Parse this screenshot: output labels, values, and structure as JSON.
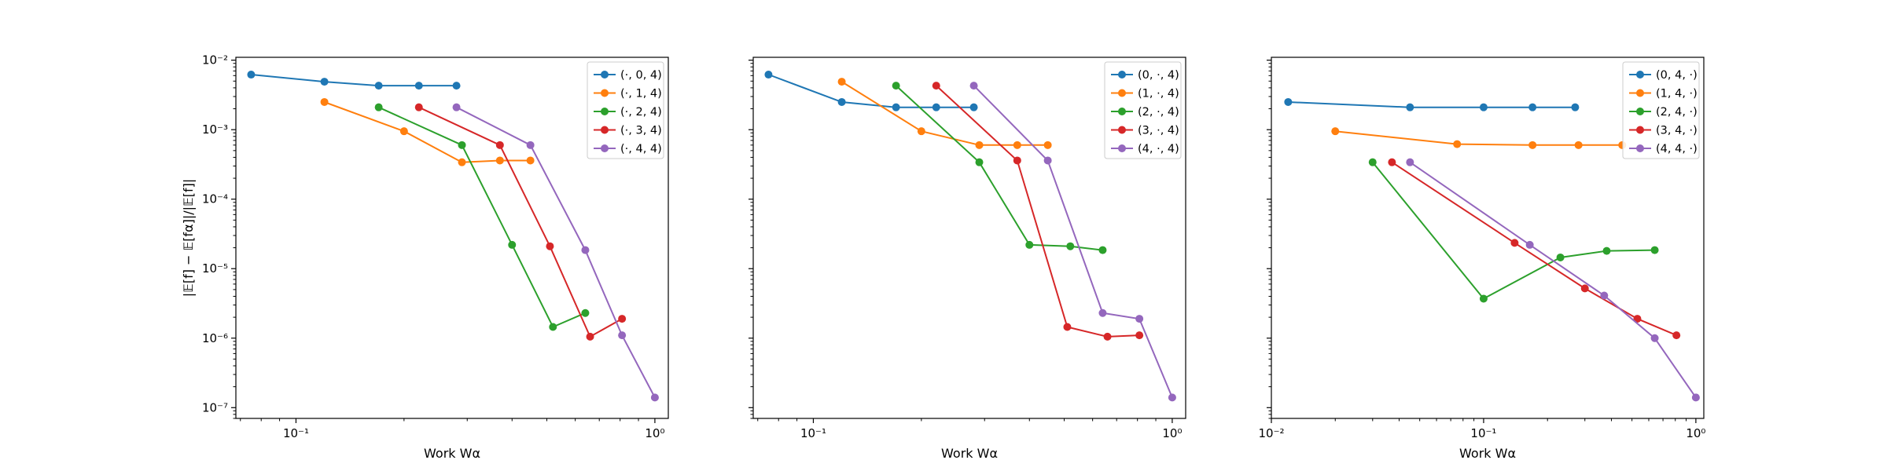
{
  "chart_data": [
    {
      "type": "line",
      "xscale": "log",
      "yscale": "log",
      "xlim": [
        0.068,
        1.09
      ],
      "ylim": [
        7e-08,
        0.011
      ],
      "xlabel": "Work Wα",
      "ylabel": "|𝔼[f] − 𝔼[fα]|/|𝔼[f]|",
      "x_ticks": [
        {
          "value": 0.1,
          "label": "10⁻¹"
        },
        {
          "value": 1,
          "label": "10⁰"
        }
      ],
      "y_ticks": [
        {
          "value": 1e-07,
          "label": "10⁻⁷"
        },
        {
          "value": 1e-06,
          "label": "10⁻⁶"
        },
        {
          "value": 1e-05,
          "label": "10⁻⁵"
        },
        {
          "value": 0.0001,
          "label": "10⁻⁴"
        },
        {
          "value": 0.001,
          "label": "10⁻³"
        },
        {
          "value": 0.01,
          "label": "10⁻²"
        }
      ],
      "legend_position": "upper right",
      "series": [
        {
          "name": "(·, 0, 4)",
          "color": "#1f77b4",
          "x": [
            0.075,
            0.12,
            0.17,
            0.22,
            0.28
          ],
          "y": [
            0.0062,
            0.0049,
            0.0043,
            0.0043,
            0.0043
          ]
        },
        {
          "name": "(·, 1, 4)",
          "color": "#ff7f0e",
          "x": [
            0.12,
            0.2,
            0.29,
            0.37,
            0.45
          ],
          "y": [
            0.0025,
            0.00095,
            0.00034,
            0.00036,
            0.00036
          ]
        },
        {
          "name": "(·, 2, 4)",
          "color": "#2ca02c",
          "x": [
            0.17,
            0.29,
            0.4,
            0.52,
            0.64
          ],
          "y": [
            0.0021,
            0.0006,
            2.2e-05,
            1.45e-06,
            2.3e-06
          ]
        },
        {
          "name": "(·, 3, 4)",
          "color": "#d62728",
          "x": [
            0.22,
            0.37,
            0.51,
            0.66,
            0.81
          ],
          "y": [
            0.0021,
            0.0006,
            2.1e-05,
            1.05e-06,
            1.9e-06
          ]
        },
        {
          "name": "(·, 4, 4)",
          "color": "#9467bd",
          "x": [
            0.28,
            0.45,
            0.64,
            0.81,
            1.0
          ],
          "y": [
            0.0021,
            0.0006,
            1.85e-05,
            1.1e-06,
            1.4e-07
          ]
        }
      ]
    },
    {
      "type": "line",
      "xscale": "log",
      "yscale": "log",
      "xlim": [
        0.068,
        1.09
      ],
      "ylim": [
        7e-08,
        0.011
      ],
      "xlabel": "Work Wα",
      "ylabel": "",
      "x_ticks": [
        {
          "value": 0.1,
          "label": "10⁻¹"
        },
        {
          "value": 1,
          "label": "10⁰"
        }
      ],
      "y_ticks": [
        {
          "value": 1e-07,
          "label": ""
        },
        {
          "value": 1e-06,
          "label": ""
        },
        {
          "value": 1e-05,
          "label": ""
        },
        {
          "value": 0.0001,
          "label": ""
        },
        {
          "value": 0.001,
          "label": ""
        },
        {
          "value": 0.01,
          "label": ""
        }
      ],
      "legend_position": "upper right",
      "series": [
        {
          "name": "(0, ·, 4)",
          "color": "#1f77b4",
          "x": [
            0.075,
            0.12,
            0.17,
            0.22,
            0.28
          ],
          "y": [
            0.0062,
            0.0025,
            0.0021,
            0.0021,
            0.0021
          ]
        },
        {
          "name": "(1, ·, 4)",
          "color": "#ff7f0e",
          "x": [
            0.12,
            0.2,
            0.29,
            0.37,
            0.45
          ],
          "y": [
            0.0049,
            0.00095,
            0.0006,
            0.0006,
            0.0006
          ]
        },
        {
          "name": "(2, ·, 4)",
          "color": "#2ca02c",
          "x": [
            0.17,
            0.29,
            0.4,
            0.52,
            0.64
          ],
          "y": [
            0.0043,
            0.00034,
            2.2e-05,
            2.1e-05,
            1.85e-05
          ]
        },
        {
          "name": "(3, ·, 4)",
          "color": "#d62728",
          "x": [
            0.22,
            0.37,
            0.51,
            0.66,
            0.81
          ],
          "y": [
            0.0043,
            0.00036,
            1.45e-06,
            1.05e-06,
            1.1e-06
          ]
        },
        {
          "name": "(4, ·, 4)",
          "color": "#9467bd",
          "x": [
            0.28,
            0.45,
            0.64,
            0.81,
            1.0
          ],
          "y": [
            0.0043,
            0.00036,
            2.3e-06,
            1.9e-06,
            1.4e-07
          ]
        }
      ]
    },
    {
      "type": "line",
      "xscale": "log",
      "yscale": "log",
      "xlim": [
        0.01,
        1.09
      ],
      "ylim": [
        7e-08,
        0.011
      ],
      "xlabel": "Work Wα",
      "ylabel": "",
      "x_ticks": [
        {
          "value": 0.01,
          "label": "10⁻²"
        },
        {
          "value": 0.1,
          "label": "10⁻¹"
        },
        {
          "value": 1,
          "label": "10⁰"
        }
      ],
      "y_ticks": [
        {
          "value": 1e-07,
          "label": ""
        },
        {
          "value": 1e-06,
          "label": ""
        },
        {
          "value": 1e-05,
          "label": ""
        },
        {
          "value": 0.0001,
          "label": ""
        },
        {
          "value": 0.001,
          "label": ""
        },
        {
          "value": 0.01,
          "label": ""
        }
      ],
      "legend_position": "upper right",
      "series": [
        {
          "name": "(0, 4, ·)",
          "color": "#1f77b4",
          "x": [
            0.012,
            0.045,
            0.1,
            0.17,
            0.27
          ],
          "y": [
            0.0025,
            0.0021,
            0.0021,
            0.0021,
            0.0021
          ]
        },
        {
          "name": "(1, 4, ·)",
          "color": "#ff7f0e",
          "x": [
            0.02,
            0.075,
            0.17,
            0.28,
            0.45
          ],
          "y": [
            0.00095,
            0.00062,
            0.0006,
            0.0006,
            0.0006
          ]
        },
        {
          "name": "(2, 4, ·)",
          "color": "#2ca02c",
          "x": [
            0.03,
            0.1,
            0.23,
            0.38,
            0.64
          ],
          "y": [
            0.00034,
            3.7e-06,
            1.45e-05,
            1.8e-05,
            1.85e-05
          ]
        },
        {
          "name": "(3, 4, ·)",
          "color": "#d62728",
          "x": [
            0.037,
            0.14,
            0.3,
            0.53,
            0.81
          ],
          "y": [
            0.00034,
            2.35e-05,
            5.2e-06,
            1.9e-06,
            1.1e-06
          ]
        },
        {
          "name": "(4, 4, ·)",
          "color": "#9467bd",
          "x": [
            0.045,
            0.165,
            0.37,
            0.64,
            1.0
          ],
          "y": [
            0.00034,
            2.2e-05,
            4.1e-06,
            1e-06,
            1.4e-07
          ]
        }
      ]
    }
  ]
}
